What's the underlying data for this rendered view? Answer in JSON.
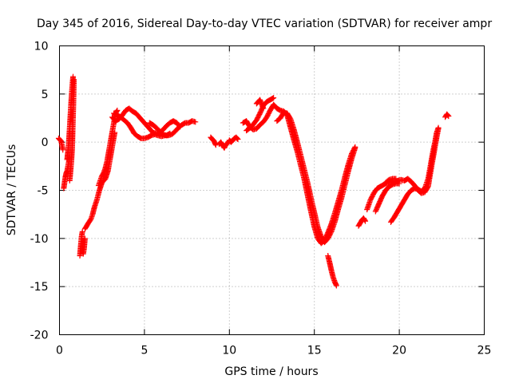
{
  "chart_data": {
    "type": "scatter",
    "title": "Day 345 of 2016, Sidereal Day-to-day VTEC variation (SDTVAR) for receiver ampr",
    "xlabel": "GPS time / hours",
    "ylabel": "SDTVAR / TECUs",
    "xlim": [
      0,
      25
    ],
    "ylim": [
      -20,
      10
    ],
    "x_ticks": [
      0,
      5,
      10,
      15,
      20,
      25
    ],
    "y_ticks": [
      -20,
      -15,
      -10,
      -5,
      0,
      5,
      10
    ],
    "grid": true,
    "legend": "none",
    "marker": "plus",
    "series_color": "#ff0000",
    "segments": [
      [
        [
          -0.05,
          0.4
        ],
        [
          0.1,
          0.1
        ],
        [
          0.2,
          -0.8
        ]
      ],
      [
        [
          0.25,
          -4.8
        ],
        [
          0.3,
          -4.2
        ],
        [
          0.35,
          -3.6
        ],
        [
          0.4,
          -3.2
        ],
        [
          0.45,
          -3.0
        ],
        [
          0.5,
          -2.5
        ],
        [
          0.55,
          -2.0
        ],
        [
          0.6,
          -1.5
        ]
      ],
      [
        [
          0.45,
          -1.8
        ],
        [
          0.5,
          -1.0
        ],
        [
          0.55,
          0.0
        ],
        [
          0.6,
          1.5
        ],
        [
          0.65,
          3.0
        ],
        [
          0.7,
          4.5
        ],
        [
          0.75,
          5.8
        ],
        [
          0.8,
          6.8
        ]
      ],
      [
        [
          0.6,
          -4.0
        ],
        [
          0.65,
          -3.0
        ],
        [
          0.7,
          -2.0
        ],
        [
          0.75,
          -0.5
        ],
        [
          0.78,
          1.5
        ],
        [
          0.82,
          4.0
        ],
        [
          0.85,
          6.5
        ]
      ],
      [
        [
          1.2,
          -11.8
        ],
        [
          1.25,
          -10.8
        ],
        [
          1.3,
          -9.8
        ],
        [
          1.35,
          -9.3
        ]
      ],
      [
        [
          1.4,
          -11.6
        ],
        [
          1.45,
          -11.0
        ],
        [
          1.5,
          -10.0
        ]
      ],
      [
        [
          1.5,
          -9.0
        ],
        [
          1.7,
          -8.4
        ],
        [
          1.85,
          -8.0
        ],
        [
          1.95,
          -7.5
        ],
        [
          2.05,
          -6.8
        ],
        [
          2.2,
          -6.0
        ],
        [
          2.35,
          -5.0
        ],
        [
          2.5,
          -4.2
        ],
        [
          2.7,
          -3.8
        ],
        [
          2.85,
          -3.0
        ],
        [
          2.95,
          -2.0
        ],
        [
          3.05,
          -1.0
        ],
        [
          3.15,
          0.0
        ],
        [
          3.25,
          1.0
        ]
      ],
      [
        [
          2.3,
          -4.5
        ],
        [
          2.4,
          -4.0
        ],
        [
          2.5,
          -3.5
        ],
        [
          2.6,
          -3.2
        ],
        [
          2.7,
          -2.7
        ],
        [
          2.8,
          -2.0
        ],
        [
          2.9,
          -1.0
        ],
        [
          3.0,
          0.0
        ],
        [
          3.1,
          1.0
        ],
        [
          3.2,
          2.0
        ],
        [
          3.3,
          3.0
        ],
        [
          3.4,
          3.3
        ]
      ],
      [
        [
          3.1,
          2.6
        ],
        [
          3.3,
          2.2
        ],
        [
          3.5,
          2.4
        ],
        [
          3.7,
          2.8
        ],
        [
          3.9,
          3.3
        ],
        [
          4.1,
          3.5
        ],
        [
          4.3,
          3.2
        ],
        [
          4.5,
          3.0
        ],
        [
          4.7,
          2.6
        ],
        [
          4.9,
          2.2
        ],
        [
          5.1,
          1.8
        ],
        [
          5.3,
          1.4
        ],
        [
          5.5,
          1.0
        ],
        [
          5.7,
          0.9
        ],
        [
          5.9,
          1.0
        ],
        [
          6.1,
          1.3
        ],
        [
          6.3,
          1.7
        ],
        [
          6.5,
          2.0
        ],
        [
          6.7,
          2.2
        ],
        [
          6.9,
          2.0
        ],
        [
          7.1,
          1.6
        ]
      ],
      [
        [
          3.2,
          3.0
        ],
        [
          3.4,
          2.8
        ],
        [
          3.6,
          2.6
        ],
        [
          3.8,
          2.3
        ],
        [
          4.0,
          2.0
        ],
        [
          4.2,
          1.5
        ],
        [
          4.4,
          0.9
        ],
        [
          4.6,
          0.6
        ],
        [
          4.8,
          0.4
        ],
        [
          5.0,
          0.4
        ],
        [
          5.2,
          0.5
        ],
        [
          5.4,
          0.7
        ],
        [
          5.6,
          0.8
        ],
        [
          5.8,
          0.7
        ],
        [
          6.0,
          0.6
        ],
        [
          6.2,
          0.7
        ],
        [
          6.4,
          0.7
        ],
        [
          6.6,
          0.8
        ],
        [
          6.8,
          1.1
        ],
        [
          7.0,
          1.5
        ],
        [
          7.2,
          1.8
        ],
        [
          7.4,
          2.0
        ],
        [
          7.6,
          2.0
        ],
        [
          7.8,
          2.2
        ],
        [
          8.0,
          2.1
        ]
      ],
      [
        [
          5.3,
          2.0
        ],
        [
          5.5,
          1.8
        ],
        [
          5.7,
          1.5
        ],
        [
          5.9,
          1.1
        ],
        [
          6.1,
          0.8
        ],
        [
          6.3,
          0.7
        ],
        [
          6.5,
          0.9
        ]
      ],
      [
        [
          8.9,
          0.5
        ],
        [
          9.0,
          0.3
        ],
        [
          9.1,
          0.1
        ],
        [
          9.2,
          -0.3
        ]
      ],
      [
        [
          9.4,
          -0.2
        ],
        [
          9.5,
          0.0
        ],
        [
          9.6,
          -0.3
        ],
        [
          9.7,
          -0.6
        ],
        [
          9.8,
          -0.2
        ],
        [
          9.9,
          -0.1
        ],
        [
          10.0,
          0.1
        ]
      ],
      [
        [
          10.0,
          0.2
        ],
        [
          10.1,
          0.0
        ],
        [
          10.2,
          0.2
        ],
        [
          10.3,
          0.4
        ],
        [
          10.4,
          0.5
        ],
        [
          10.5,
          0.3
        ]
      ],
      [
        [
          10.8,
          2.0
        ],
        [
          11.0,
          2.2
        ],
        [
          11.2,
          1.6
        ],
        [
          11.4,
          1.3
        ],
        [
          11.6,
          1.4
        ],
        [
          11.8,
          1.8
        ],
        [
          12.0,
          2.1
        ],
        [
          12.2,
          2.6
        ],
        [
          12.4,
          3.3
        ],
        [
          12.6,
          3.9
        ],
        [
          12.8,
          3.5
        ],
        [
          13.0,
          3.3
        ],
        [
          13.2,
          3.2
        ],
        [
          13.4,
          2.8
        ],
        [
          13.6,
          1.5
        ],
        [
          13.8,
          0.2
        ],
        [
          14.0,
          -1.0
        ],
        [
          14.2,
          -2.4
        ],
        [
          14.4,
          -3.8
        ],
        [
          14.6,
          -5.5
        ],
        [
          14.8,
          -7.2
        ],
        [
          15.0,
          -8.8
        ],
        [
          15.2,
          -10.0
        ],
        [
          15.4,
          -10.5
        ],
        [
          15.6,
          -10.2
        ],
        [
          15.8,
          -9.4
        ],
        [
          16.0,
          -8.5
        ],
        [
          16.2,
          -7.4
        ],
        [
          16.4,
          -6.2
        ],
        [
          16.6,
          -5.0
        ],
        [
          16.8,
          -3.6
        ],
        [
          17.0,
          -2.3
        ],
        [
          17.2,
          -1.2
        ],
        [
          17.4,
          -0.5
        ]
      ],
      [
        [
          11.0,
          1.2
        ],
        [
          11.3,
          1.6
        ],
        [
          11.6,
          2.3
        ],
        [
          11.8,
          3.0
        ],
        [
          12.0,
          3.8
        ],
        [
          12.2,
          4.2
        ],
        [
          12.4,
          4.4
        ],
        [
          12.6,
          4.6
        ]
      ],
      [
        [
          11.6,
          4.0
        ],
        [
          11.8,
          4.4
        ],
        [
          12.0,
          3.5
        ]
      ],
      [
        [
          12.8,
          2.2
        ],
        [
          13.0,
          2.5
        ],
        [
          13.2,
          3.1
        ],
        [
          13.4,
          3.0
        ],
        [
          13.6,
          2.4
        ],
        [
          13.8,
          1.3
        ],
        [
          14.0,
          0.0
        ],
        [
          14.2,
          -1.4
        ],
        [
          14.4,
          -2.8
        ],
        [
          14.6,
          -4.2
        ],
        [
          14.8,
          -5.8
        ],
        [
          15.0,
          -7.3
        ],
        [
          15.2,
          -8.8
        ],
        [
          15.4,
          -9.8
        ],
        [
          15.6,
          -10.4
        ],
        [
          15.8,
          -10.0
        ],
        [
          16.0,
          -9.3
        ],
        [
          16.2,
          -8.3
        ],
        [
          16.4,
          -7.0
        ],
        [
          16.6,
          -5.8
        ],
        [
          16.8,
          -4.4
        ],
        [
          17.0,
          -3.0
        ],
        [
          17.2,
          -1.7
        ],
        [
          17.4,
          -0.6
        ]
      ],
      [
        [
          15.8,
          -11.8
        ],
        [
          15.9,
          -12.5
        ],
        [
          16.0,
          -13.3
        ],
        [
          16.1,
          -14.0
        ],
        [
          16.2,
          -14.5
        ],
        [
          16.3,
          -14.9
        ]
      ],
      [
        [
          17.6,
          -8.7
        ],
        [
          17.7,
          -8.4
        ],
        [
          17.8,
          -8.1
        ],
        [
          17.9,
          -7.9
        ],
        [
          18.0,
          -8.2
        ]
      ],
      [
        [
          18.1,
          -7.0
        ],
        [
          18.3,
          -6.0
        ],
        [
          18.5,
          -5.3
        ],
        [
          18.7,
          -4.8
        ],
        [
          18.9,
          -4.6
        ],
        [
          19.1,
          -4.4
        ],
        [
          19.3,
          -4.2
        ],
        [
          19.5,
          -4.1
        ],
        [
          19.7,
          -4.2
        ],
        [
          19.9,
          -4.0
        ],
        [
          20.1,
          -3.9
        ],
        [
          20.3,
          -4.0
        ],
        [
          20.5,
          -3.8
        ],
        [
          20.7,
          -4.1
        ],
        [
          20.9,
          -4.5
        ],
        [
          21.1,
          -5.0
        ],
        [
          21.3,
          -5.3
        ],
        [
          21.5,
          -5.2
        ],
        [
          21.7,
          -4.6
        ],
        [
          21.8,
          -3.5
        ],
        [
          21.9,
          -2.5
        ],
        [
          22.0,
          -1.5
        ],
        [
          22.1,
          -0.5
        ],
        [
          22.2,
          0.5
        ],
        [
          22.3,
          1.4
        ]
      ],
      [
        [
          18.6,
          -7.2
        ],
        [
          18.8,
          -6.4
        ],
        [
          19.0,
          -5.6
        ],
        [
          19.2,
          -5.0
        ],
        [
          19.4,
          -4.6
        ],
        [
          19.6,
          -4.4
        ],
        [
          19.8,
          -4.3
        ],
        [
          20.0,
          -4.3
        ]
      ],
      [
        [
          19.2,
          -4.2
        ],
        [
          19.4,
          -3.9
        ],
        [
          19.6,
          -3.8
        ],
        [
          19.8,
          -3.8
        ]
      ],
      [
        [
          19.5,
          -8.3
        ],
        [
          19.7,
          -7.8
        ],
        [
          19.9,
          -7.2
        ],
        [
          20.1,
          -6.6
        ],
        [
          20.3,
          -6.0
        ],
        [
          20.5,
          -5.4
        ],
        [
          20.7,
          -5.0
        ],
        [
          20.9,
          -4.8
        ],
        [
          21.1,
          -4.9
        ],
        [
          21.3,
          -5.1
        ],
        [
          21.5,
          -4.8
        ],
        [
          21.7,
          -3.8
        ],
        [
          21.8,
          -2.8
        ],
        [
          21.9,
          -1.8
        ],
        [
          22.0,
          -0.8
        ],
        [
          22.1,
          0.0
        ],
        [
          22.2,
          1.0
        ],
        [
          22.3,
          1.5
        ]
      ],
      [
        [
          22.7,
          2.6
        ],
        [
          22.8,
          2.9
        ],
        [
          22.9,
          2.7
        ]
      ]
    ]
  }
}
